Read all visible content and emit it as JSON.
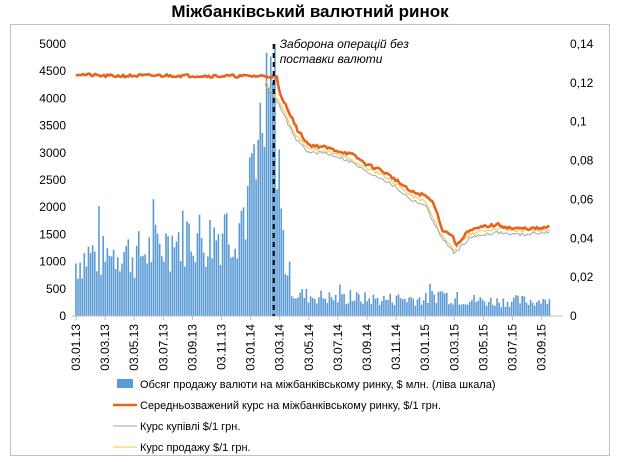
{
  "chart_data": {
    "type": "bar+line",
    "title": "Міжбанківський валютний ринок",
    "annotation": "Заборона операцій без поставки валюти",
    "x_tick_labels": [
      "03.01.13",
      "03.03.13",
      "03.05.13",
      "03.07.13",
      "03.09.13",
      "03.11.13",
      "03.01.14",
      "03.03.14",
      "03.05.14",
      "03.07.14",
      "03.09.14",
      "03.11.14",
      "03.01.15",
      "03.03.15",
      "03.05.15",
      "03.07.15",
      "03.09.15"
    ],
    "y_left": {
      "ylim": [
        0,
        5000
      ],
      "ticks": [
        0,
        500,
        1000,
        1500,
        2000,
        2500,
        3000,
        3500,
        4000,
        4500,
        5000
      ]
    },
    "y_right": {
      "ylim": [
        0,
        0.14
      ],
      "ticks": [
        "0",
        "0,02",
        "0,04",
        "0,06",
        "0,08",
        "0,1",
        "0,12",
        "0,14"
      ]
    },
    "annotation_x_index": 7.0,
    "grid": false,
    "legend_position": "bottom",
    "series": [
      {
        "name": "Обсяг продажу валюти на міжбанківському ринку, $ млн. (ліва шкала)",
        "kind": "bar",
        "axis": "left",
        "color": "#5b9bd5",
        "points": [
          [
            0.0,
            1050
          ],
          [
            0.5,
            1250
          ],
          [
            1.0,
            1150
          ],
          [
            1.5,
            1350
          ],
          [
            2.0,
            1200
          ],
          [
            2.5,
            1300
          ],
          [
            3.0,
            1400
          ],
          [
            3.5,
            1550
          ],
          [
            4.0,
            1650
          ],
          [
            4.5,
            1500
          ],
          [
            5.0,
            1700
          ],
          [
            5.5,
            1800
          ],
          [
            6.0,
            2400
          ],
          [
            6.3,
            2900
          ],
          [
            6.5,
            3600
          ],
          [
            6.7,
            4300
          ],
          [
            6.8,
            4800
          ],
          [
            6.9,
            4200
          ],
          [
            7.0,
            2200
          ],
          [
            7.2,
            1100
          ],
          [
            7.5,
            450
          ],
          [
            8.0,
            400
          ],
          [
            8.5,
            380
          ],
          [
            9.0,
            350
          ],
          [
            9.5,
            360
          ],
          [
            10.0,
            340
          ],
          [
            10.5,
            330
          ],
          [
            11.0,
            340
          ],
          [
            11.5,
            350
          ],
          [
            12.0,
            330
          ],
          [
            12.5,
            450
          ],
          [
            13.0,
            350
          ],
          [
            13.5,
            330
          ],
          [
            14.0,
            300
          ],
          [
            14.5,
            290
          ],
          [
            15.0,
            300
          ],
          [
            15.5,
            300
          ],
          [
            16.0,
            310
          ],
          [
            16.3,
            300
          ]
        ]
      },
      {
        "name": "Середньозважений курс на міжбанківському ринку, $/1 грн.",
        "kind": "line",
        "axis": "right",
        "color": "#e8631c",
        "points": [
          [
            0.0,
            0.1245
          ],
          [
            1.0,
            0.1235
          ],
          [
            3.0,
            0.1238
          ],
          [
            5.0,
            0.1235
          ],
          [
            6.5,
            0.1235
          ],
          [
            6.9,
            0.123
          ],
          [
            7.0,
            0.114
          ],
          [
            7.3,
            0.106
          ],
          [
            7.6,
            0.096
          ],
          [
            8.0,
            0.088
          ],
          [
            8.5,
            0.087
          ],
          [
            9.0,
            0.085
          ],
          [
            9.5,
            0.083
          ],
          [
            10.0,
            0.078
          ],
          [
            10.5,
            0.075
          ],
          [
            11.0,
            0.07
          ],
          [
            11.5,
            0.064
          ],
          [
            12.0,
            0.062
          ],
          [
            12.3,
            0.058
          ],
          [
            12.6,
            0.044
          ],
          [
            12.9,
            0.042
          ],
          [
            13.1,
            0.036
          ],
          [
            13.4,
            0.043
          ],
          [
            14.0,
            0.046
          ],
          [
            14.5,
            0.047
          ],
          [
            15.0,
            0.045
          ],
          [
            15.5,
            0.045
          ],
          [
            16.0,
            0.045
          ],
          [
            16.3,
            0.046
          ]
        ]
      },
      {
        "name": "Курс купівлі $/1 грн.",
        "kind": "line",
        "axis": "right",
        "color": "#a6a6a6",
        "points": [
          [
            6.5,
            0.119
          ],
          [
            7.0,
            0.108
          ],
          [
            7.5,
            0.092
          ],
          [
            8.0,
            0.084
          ],
          [
            8.5,
            0.084
          ],
          [
            9.0,
            0.082
          ],
          [
            9.5,
            0.079
          ],
          [
            10.0,
            0.074
          ],
          [
            10.5,
            0.071
          ],
          [
            11.0,
            0.066
          ],
          [
            11.5,
            0.06
          ],
          [
            12.0,
            0.057
          ],
          [
            12.5,
            0.042
          ],
          [
            13.0,
            0.032
          ],
          [
            13.5,
            0.04
          ],
          [
            14.0,
            0.042
          ],
          [
            14.5,
            0.043
          ],
          [
            15.0,
            0.042
          ],
          [
            15.5,
            0.042
          ],
          [
            16.0,
            0.043
          ],
          [
            16.3,
            0.043
          ]
        ]
      },
      {
        "name": "Курс продажу $/1 грн.",
        "kind": "line",
        "axis": "right",
        "color": "#f2c744",
        "points": [
          [
            6.5,
            0.121
          ],
          [
            7.0,
            0.11
          ],
          [
            7.5,
            0.094
          ],
          [
            8.0,
            0.086
          ],
          [
            8.5,
            0.085
          ],
          [
            9.0,
            0.083
          ],
          [
            9.5,
            0.08
          ],
          [
            10.0,
            0.076
          ],
          [
            10.5,
            0.073
          ],
          [
            11.0,
            0.068
          ],
          [
            11.5,
            0.062
          ],
          [
            12.0,
            0.059
          ],
          [
            12.5,
            0.043
          ],
          [
            13.0,
            0.034
          ],
          [
            13.5,
            0.042
          ],
          [
            14.0,
            0.044
          ],
          [
            14.5,
            0.045
          ],
          [
            15.0,
            0.044
          ],
          [
            15.5,
            0.044
          ],
          [
            16.0,
            0.044
          ],
          [
            16.3,
            0.045
          ]
        ]
      }
    ]
  }
}
